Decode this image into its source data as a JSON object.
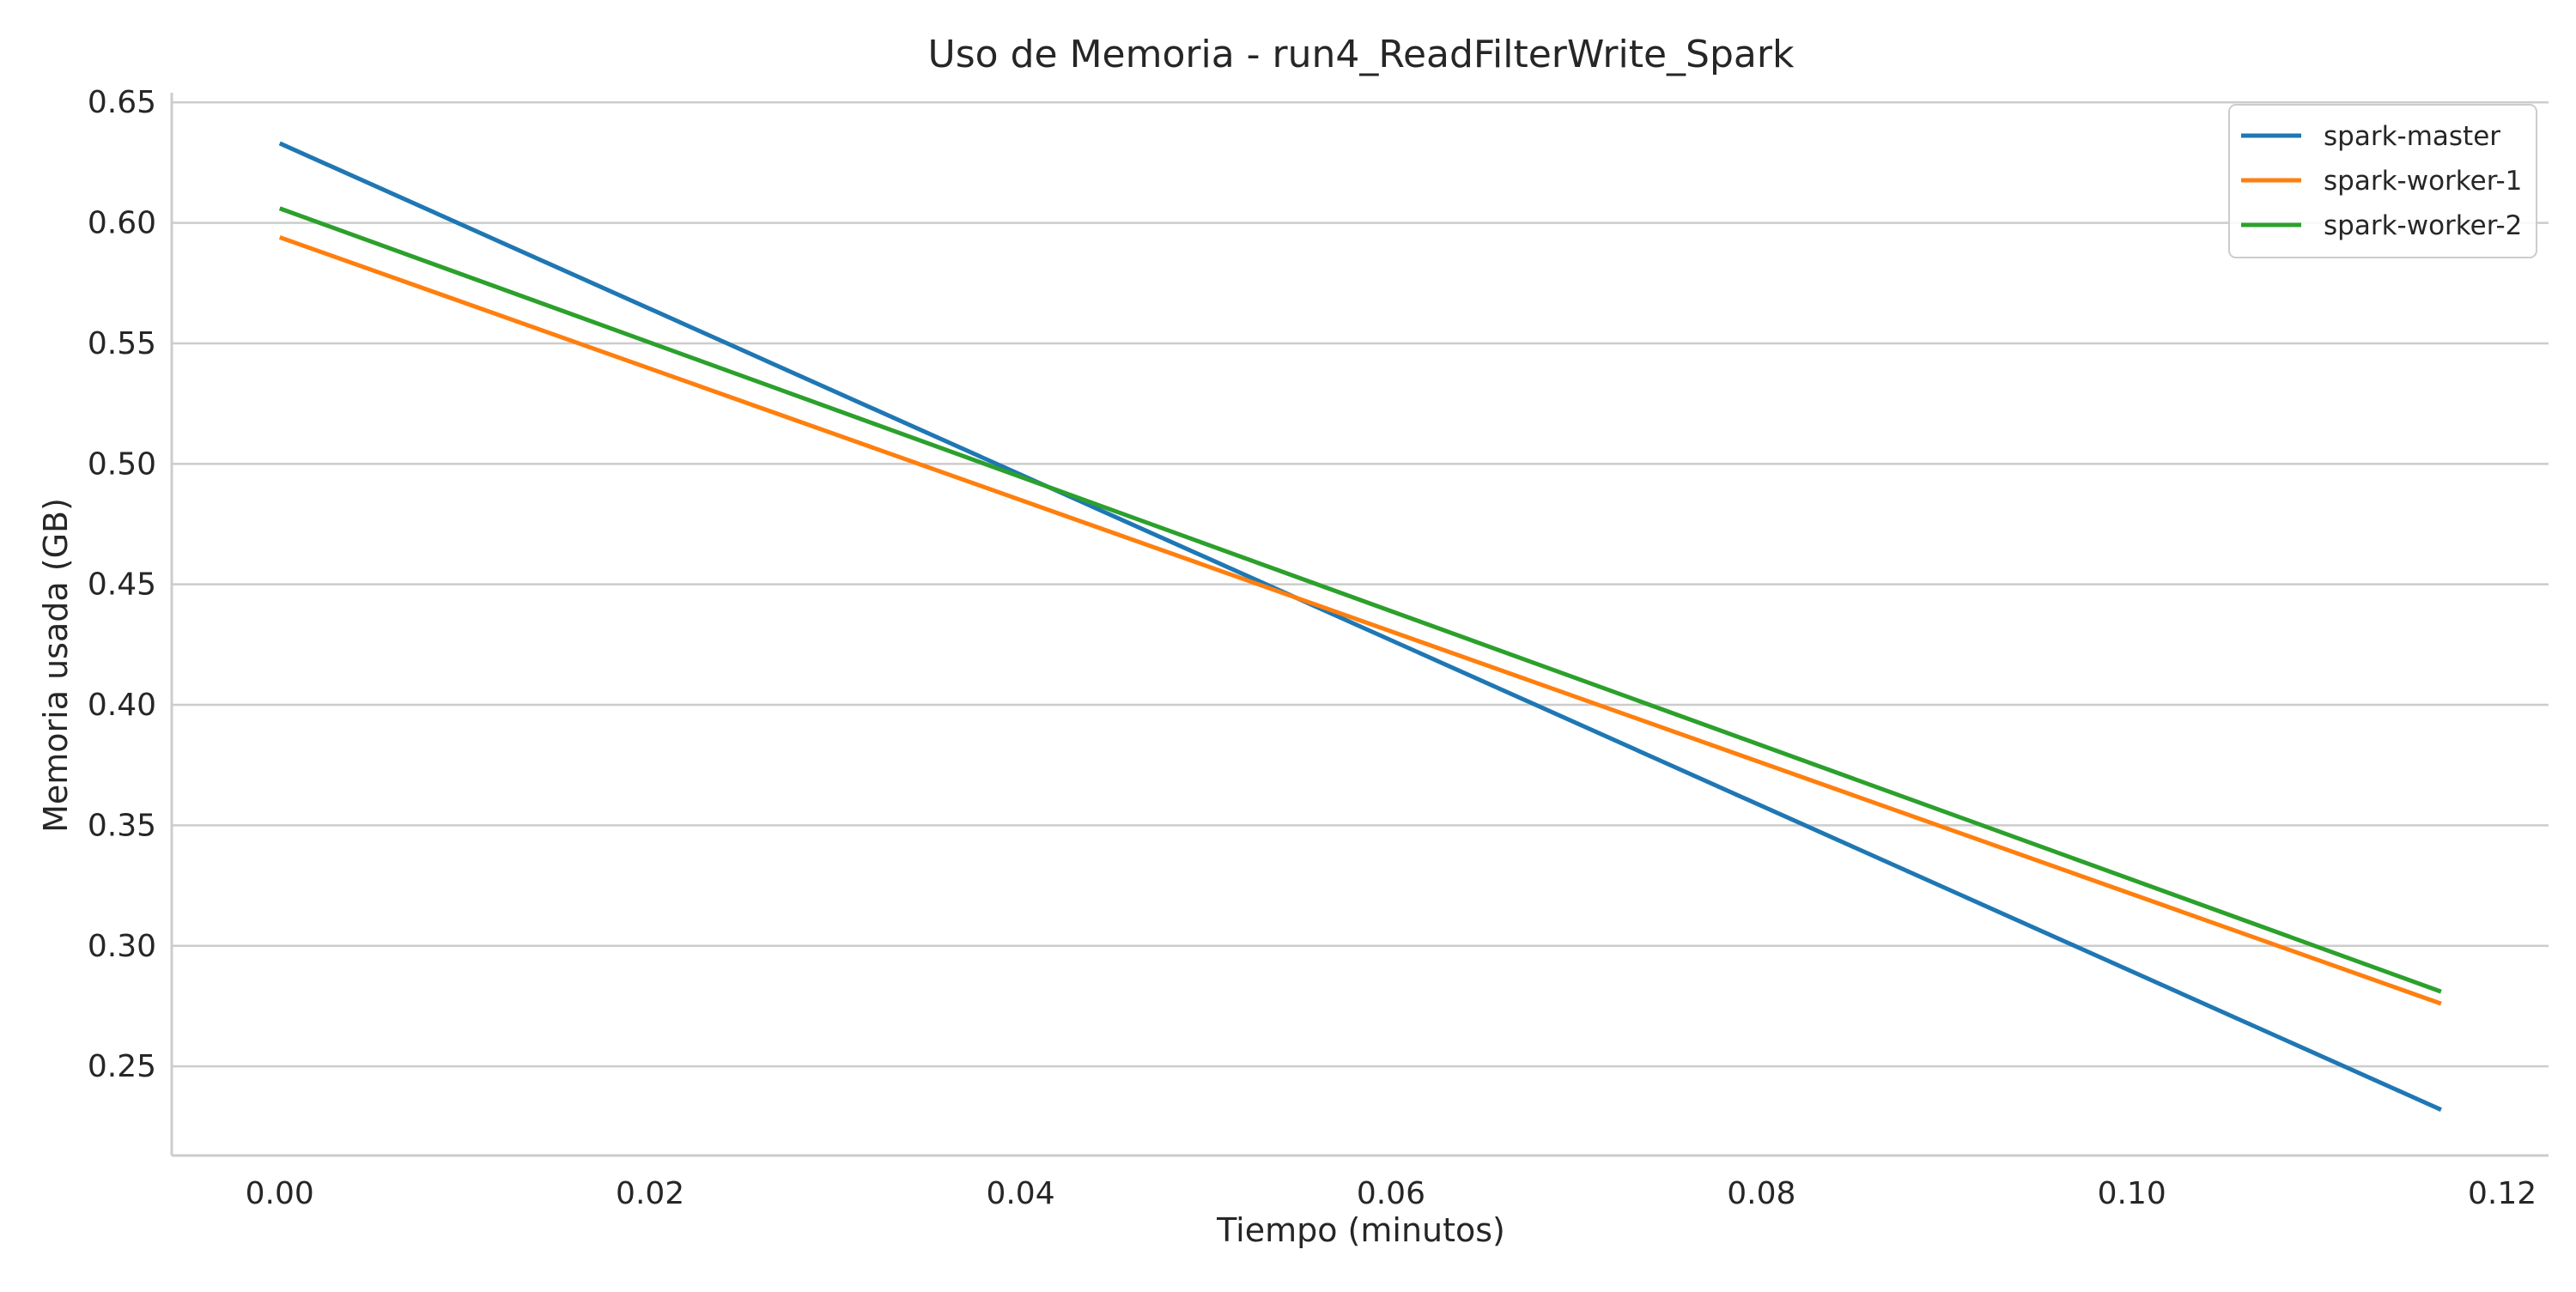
{
  "chart_data": {
    "type": "line",
    "title": "Uso de Memoria - run4_ReadFilterWrite_Spark",
    "xlabel": "Tiempo (minutos)",
    "ylabel": "Memoria usada (GB)",
    "xlim": [
      -0.00583,
      0.1225
    ],
    "ylim": [
      0.213,
      0.654
    ],
    "x_ticks": [
      0.0,
      0.02,
      0.04,
      0.06,
      0.08,
      0.1,
      0.12
    ],
    "x_tick_labels": [
      "0.00",
      "0.02",
      "0.04",
      "0.06",
      "0.08",
      "0.10",
      "0.12"
    ],
    "y_ticks": [
      0.25,
      0.3,
      0.35,
      0.4,
      0.45,
      0.5,
      0.55,
      0.6,
      0.65
    ],
    "y_tick_labels": [
      "0.25",
      "0.30",
      "0.35",
      "0.40",
      "0.45",
      "0.50",
      "0.55",
      "0.60",
      "0.65"
    ],
    "grid": "horizontal",
    "legend_position": "top-right",
    "series": [
      {
        "name": "spark-master",
        "color": "#1f77b4",
        "x": [
          0.0,
          0.1167
        ],
        "y": [
          0.633,
          0.232
        ]
      },
      {
        "name": "spark-worker-1",
        "color": "#ff7f0e",
        "x": [
          0.0,
          0.1167
        ],
        "y": [
          0.594,
          0.276
        ]
      },
      {
        "name": "spark-worker-2",
        "color": "#2ca02c",
        "x": [
          0.0,
          0.1167
        ],
        "y": [
          0.606,
          0.281
        ]
      }
    ]
  }
}
